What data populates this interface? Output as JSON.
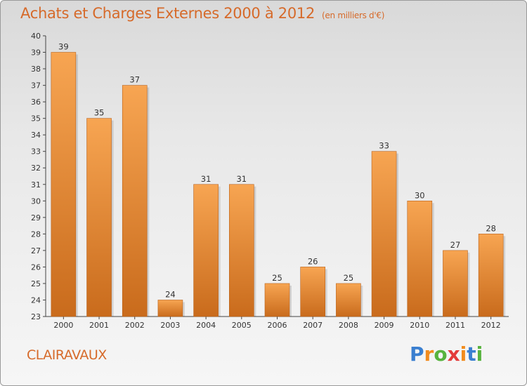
{
  "header": {
    "title": "Achats et Charges Externes 2000 à 2012",
    "unit": "(en milliers d'€)"
  },
  "footer": {
    "commune": "CLAIRAVAUX",
    "logo": [
      "P",
      "r",
      "o",
      "x",
      "i",
      "t",
      "i"
    ],
    "logo_colors": [
      "#3a7fd0",
      "#f28c1e",
      "#57b33e",
      "#e33b3b",
      "#f28c1e",
      "#3a7fd0",
      "#57b33e"
    ]
  },
  "colors": {
    "bar_light": "#f7a552",
    "bar_dark": "#c96b1c",
    "title": "#d66a2a"
  },
  "chart_data": {
    "type": "bar",
    "categories": [
      "2000",
      "2001",
      "2002",
      "2003",
      "2004",
      "2005",
      "2006",
      "2007",
      "2008",
      "2009",
      "2010",
      "2011",
      "2012"
    ],
    "values": [
      39,
      35,
      37,
      24,
      31,
      31,
      25,
      26,
      25,
      33,
      30,
      27,
      28
    ],
    "title": "Achats et Charges Externes 2000 à 2012",
    "ylim": [
      23,
      40
    ],
    "yticks": [
      23,
      24,
      25,
      26,
      27,
      28,
      29,
      30,
      31,
      32,
      33,
      34,
      35,
      36,
      37,
      38,
      39,
      40
    ],
    "grid": false
  }
}
